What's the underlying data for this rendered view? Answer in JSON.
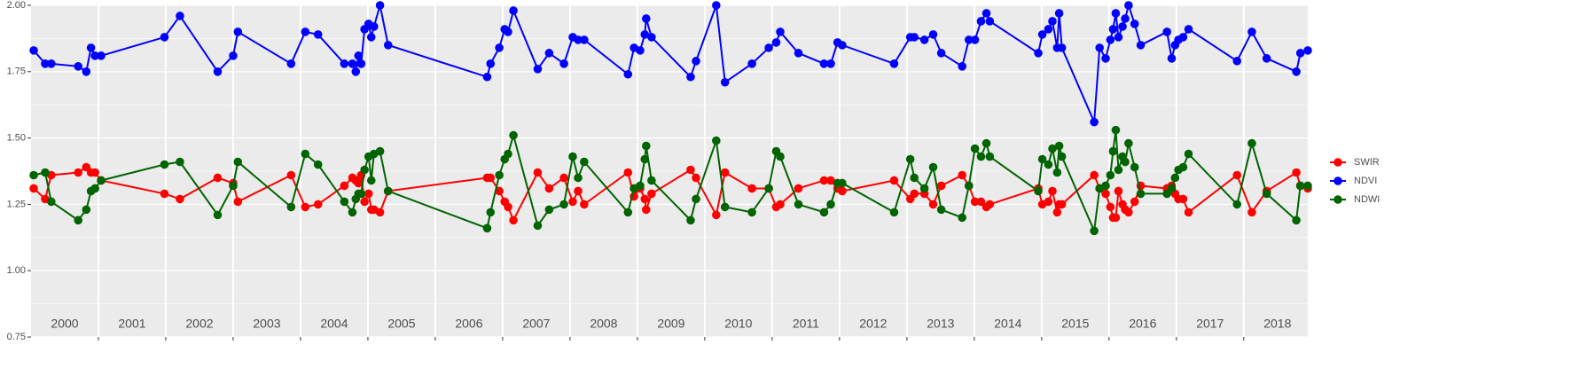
{
  "chart_data": {
    "type": "line",
    "x": [
      2000.04,
      2000.21,
      2000.3,
      2000.7,
      2000.82,
      2000.89,
      2000.95,
      2001.04,
      2001.98,
      2002.21,
      2002.77,
      2003.0,
      2003.07,
      2003.86,
      2004.07,
      2004.26,
      2004.65,
      2004.77,
      2004.82,
      2004.86,
      2004.9,
      2004.95,
      2005.01,
      2005.05,
      2005.09,
      2005.18,
      2005.3,
      2006.77,
      2006.82,
      2006.95,
      2007.03,
      2007.08,
      2007.16,
      2007.52,
      2007.69,
      2007.91,
      2008.04,
      2008.12,
      2008.21,
      2008.86,
      2008.95,
      2009.04,
      2009.11,
      2009.13,
      2009.21,
      2009.79,
      2009.87,
      2010.17,
      2010.3,
      2010.7,
      2010.95,
      2011.06,
      2011.12,
      2011.39,
      2011.77,
      2011.87,
      2011.97,
      2012.04,
      2012.81,
      2013.05,
      2013.11,
      2013.26,
      2013.39,
      2013.51,
      2013.82,
      2013.92,
      2014.01,
      2014.1,
      2014.18,
      2014.23,
      2014.95,
      2015.01,
      2015.1,
      2015.16,
      2015.23,
      2015.26,
      2015.3,
      2015.78,
      2015.86,
      2015.95,
      2016.02,
      2016.06,
      2016.1,
      2016.14,
      2016.2,
      2016.24,
      2016.29,
      2016.38,
      2016.47,
      2016.86,
      2016.93,
      2016.98,
      2017.03,
      2017.1,
      2017.18,
      2017.9,
      2018.12,
      2018.34,
      2018.78,
      2018.84,
      2018.95
    ],
    "series": [
      {
        "name": "SWIR",
        "color": "#FF0000",
        "values": [
          1.31,
          1.27,
          1.36,
          1.37,
          1.39,
          1.37,
          1.37,
          1.34,
          1.29,
          1.27,
          1.35,
          1.33,
          1.26,
          1.36,
          1.24,
          1.25,
          1.32,
          1.35,
          1.34,
          1.33,
          1.36,
          1.26,
          1.29,
          1.23,
          1.23,
          1.22,
          1.3,
          1.35,
          1.35,
          1.3,
          1.26,
          1.24,
          1.19,
          1.37,
          1.31,
          1.35,
          1.26,
          1.3,
          1.25,
          1.37,
          1.28,
          1.31,
          1.27,
          1.23,
          1.29,
          1.38,
          1.35,
          1.21,
          1.37,
          1.31,
          1.31,
          1.24,
          1.25,
          1.31,
          1.34,
          1.34,
          1.31,
          1.3,
          1.34,
          1.27,
          1.29,
          1.29,
          1.25,
          1.32,
          1.36,
          1.32,
          1.26,
          1.26,
          1.24,
          1.25,
          1.31,
          1.25,
          1.26,
          1.3,
          1.22,
          1.25,
          1.25,
          1.36,
          1.31,
          1.29,
          1.24,
          1.2,
          1.2,
          1.3,
          1.25,
          1.23,
          1.22,
          1.26,
          1.32,
          1.31,
          1.32,
          1.29,
          1.27,
          1.27,
          1.22,
          1.36,
          1.22,
          1.3,
          1.37,
          1.32,
          1.31
        ]
      },
      {
        "name": "NDVI",
        "color": "#0000FF",
        "values": [
          1.83,
          1.78,
          1.78,
          1.77,
          1.75,
          1.84,
          1.81,
          1.81,
          1.88,
          1.96,
          1.75,
          1.81,
          1.9,
          1.78,
          1.9,
          1.89,
          1.78,
          1.78,
          1.75,
          1.81,
          1.78,
          1.91,
          1.93,
          1.88,
          1.92,
          2.0,
          1.85,
          1.73,
          1.78,
          1.84,
          1.91,
          1.9,
          1.98,
          1.76,
          1.82,
          1.78,
          1.88,
          1.87,
          1.87,
          1.74,
          1.84,
          1.83,
          1.89,
          1.95,
          1.88,
          1.73,
          1.79,
          2.0,
          1.71,
          1.78,
          1.84,
          1.86,
          1.9,
          1.82,
          1.78,
          1.78,
          1.86,
          1.85,
          1.78,
          1.88,
          1.88,
          1.87,
          1.89,
          1.82,
          1.77,
          1.87,
          1.87,
          1.94,
          1.97,
          1.94,
          1.82,
          1.89,
          1.91,
          1.94,
          1.84,
          1.97,
          1.84,
          1.56,
          1.84,
          1.8,
          1.87,
          1.91,
          1.97,
          1.88,
          1.92,
          1.95,
          2.0,
          1.93,
          1.85,
          1.9,
          1.8,
          1.85,
          1.87,
          1.88,
          1.91,
          1.79,
          1.9,
          1.8,
          1.75,
          1.82,
          1.83
        ]
      },
      {
        "name": "NDWI",
        "color": "#006400",
        "values": [
          1.36,
          1.37,
          1.26,
          1.19,
          1.23,
          1.3,
          1.31,
          1.34,
          1.4,
          1.41,
          1.21,
          1.32,
          1.41,
          1.24,
          1.44,
          1.4,
          1.26,
          1.22,
          1.27,
          1.29,
          1.29,
          1.38,
          1.43,
          1.34,
          1.44,
          1.45,
          1.3,
          1.16,
          1.22,
          1.36,
          1.42,
          1.44,
          1.51,
          1.17,
          1.23,
          1.25,
          1.43,
          1.35,
          1.41,
          1.22,
          1.31,
          1.32,
          1.42,
          1.47,
          1.34,
          1.19,
          1.27,
          1.49,
          1.24,
          1.22,
          1.31,
          1.45,
          1.43,
          1.25,
          1.22,
          1.25,
          1.33,
          1.33,
          1.22,
          1.42,
          1.35,
          1.31,
          1.39,
          1.23,
          1.2,
          1.32,
          1.46,
          1.43,
          1.48,
          1.43,
          1.3,
          1.42,
          1.4,
          1.46,
          1.37,
          1.47,
          1.43,
          1.15,
          1.31,
          1.32,
          1.36,
          1.45,
          1.53,
          1.38,
          1.43,
          1.41,
          1.48,
          1.39,
          1.29,
          1.29,
          1.31,
          1.35,
          1.38,
          1.39,
          1.44,
          1.25,
          1.48,
          1.29,
          1.19,
          1.32,
          1.32
        ]
      }
    ],
    "xlim": [
      2000,
      2018.95
    ],
    "xticks": [
      {
        "value": 2000,
        "label": "2000"
      },
      {
        "value": 2001,
        "label": "2001"
      },
      {
        "value": 2002,
        "label": "2002"
      },
      {
        "value": 2003,
        "label": "2003"
      },
      {
        "value": 2004,
        "label": "2004"
      },
      {
        "value": 2005,
        "label": "2005"
      },
      {
        "value": 2006,
        "label": "2006"
      },
      {
        "value": 2007,
        "label": "2007"
      },
      {
        "value": 2008,
        "label": "2008"
      },
      {
        "value": 2009,
        "label": "2009"
      },
      {
        "value": 2010,
        "label": "2010"
      },
      {
        "value": 2011,
        "label": "2011"
      },
      {
        "value": 2012,
        "label": "2012"
      },
      {
        "value": 2013,
        "label": "2013"
      },
      {
        "value": 2014,
        "label": "2014"
      },
      {
        "value": 2015,
        "label": "2015"
      },
      {
        "value": 2016,
        "label": "2016"
      },
      {
        "value": 2017,
        "label": "2017"
      },
      {
        "value": 2018,
        "label": "2018"
      }
    ],
    "ylim": [
      0.75,
      2.0
    ],
    "yticks": [
      {
        "value": 0.75,
        "label": "0.75"
      },
      {
        "value": 1.0,
        "label": "1.00"
      },
      {
        "value": 1.25,
        "label": "1.25"
      },
      {
        "value": 1.5,
        "label": "1.50"
      },
      {
        "value": 1.75,
        "label": "1.75"
      },
      {
        "value": 2.0,
        "label": "2.00"
      }
    ],
    "grid": true,
    "legend": "right"
  }
}
